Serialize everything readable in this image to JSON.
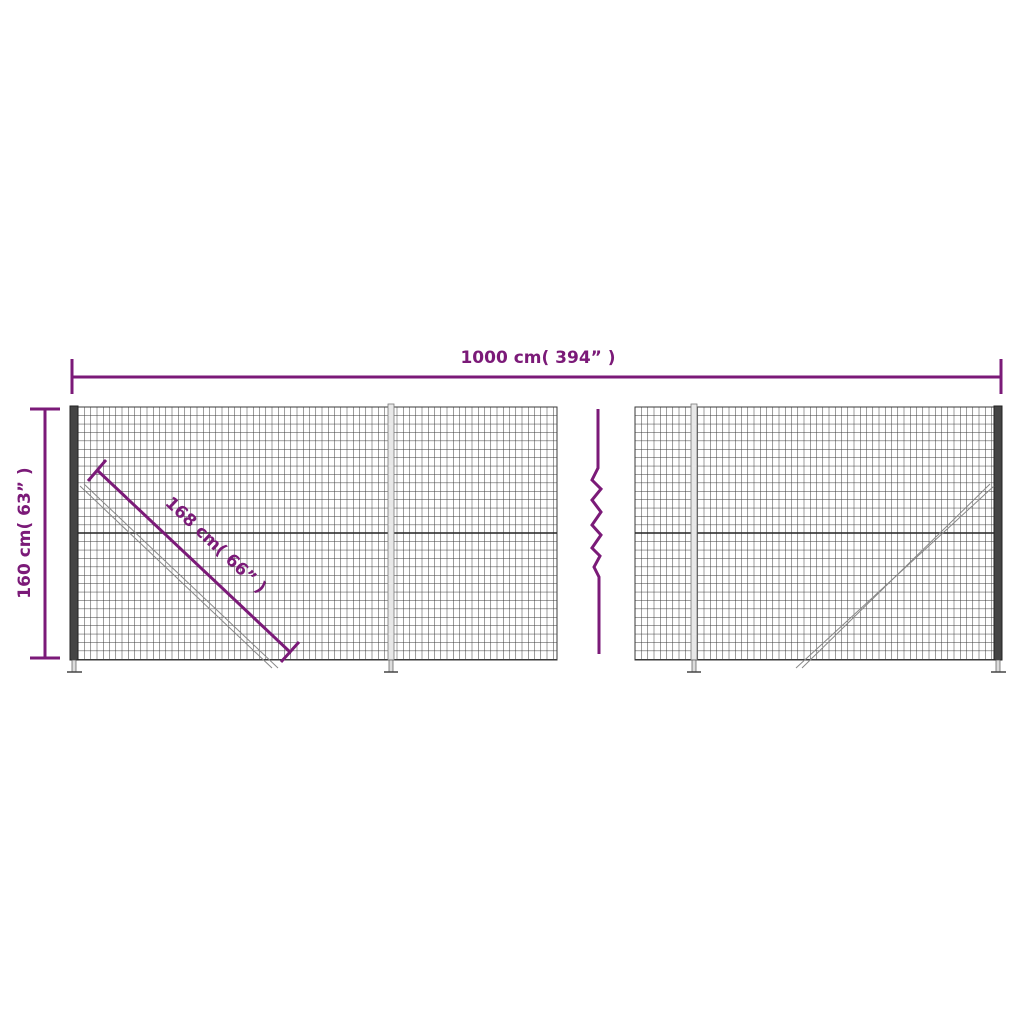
{
  "dimensions": {
    "width_label": "1000 cm( 394”  )",
    "height_label": "160 cm( 63”  )",
    "diagonal_label": "168 cm( 66”  )"
  },
  "colors": {
    "dimension_line": "#7b1a78",
    "mesh": "#333333",
    "post": "#bbbbbb"
  },
  "icons": [
    "fence-panel-left",
    "fence-panel-right",
    "break-symbol"
  ]
}
